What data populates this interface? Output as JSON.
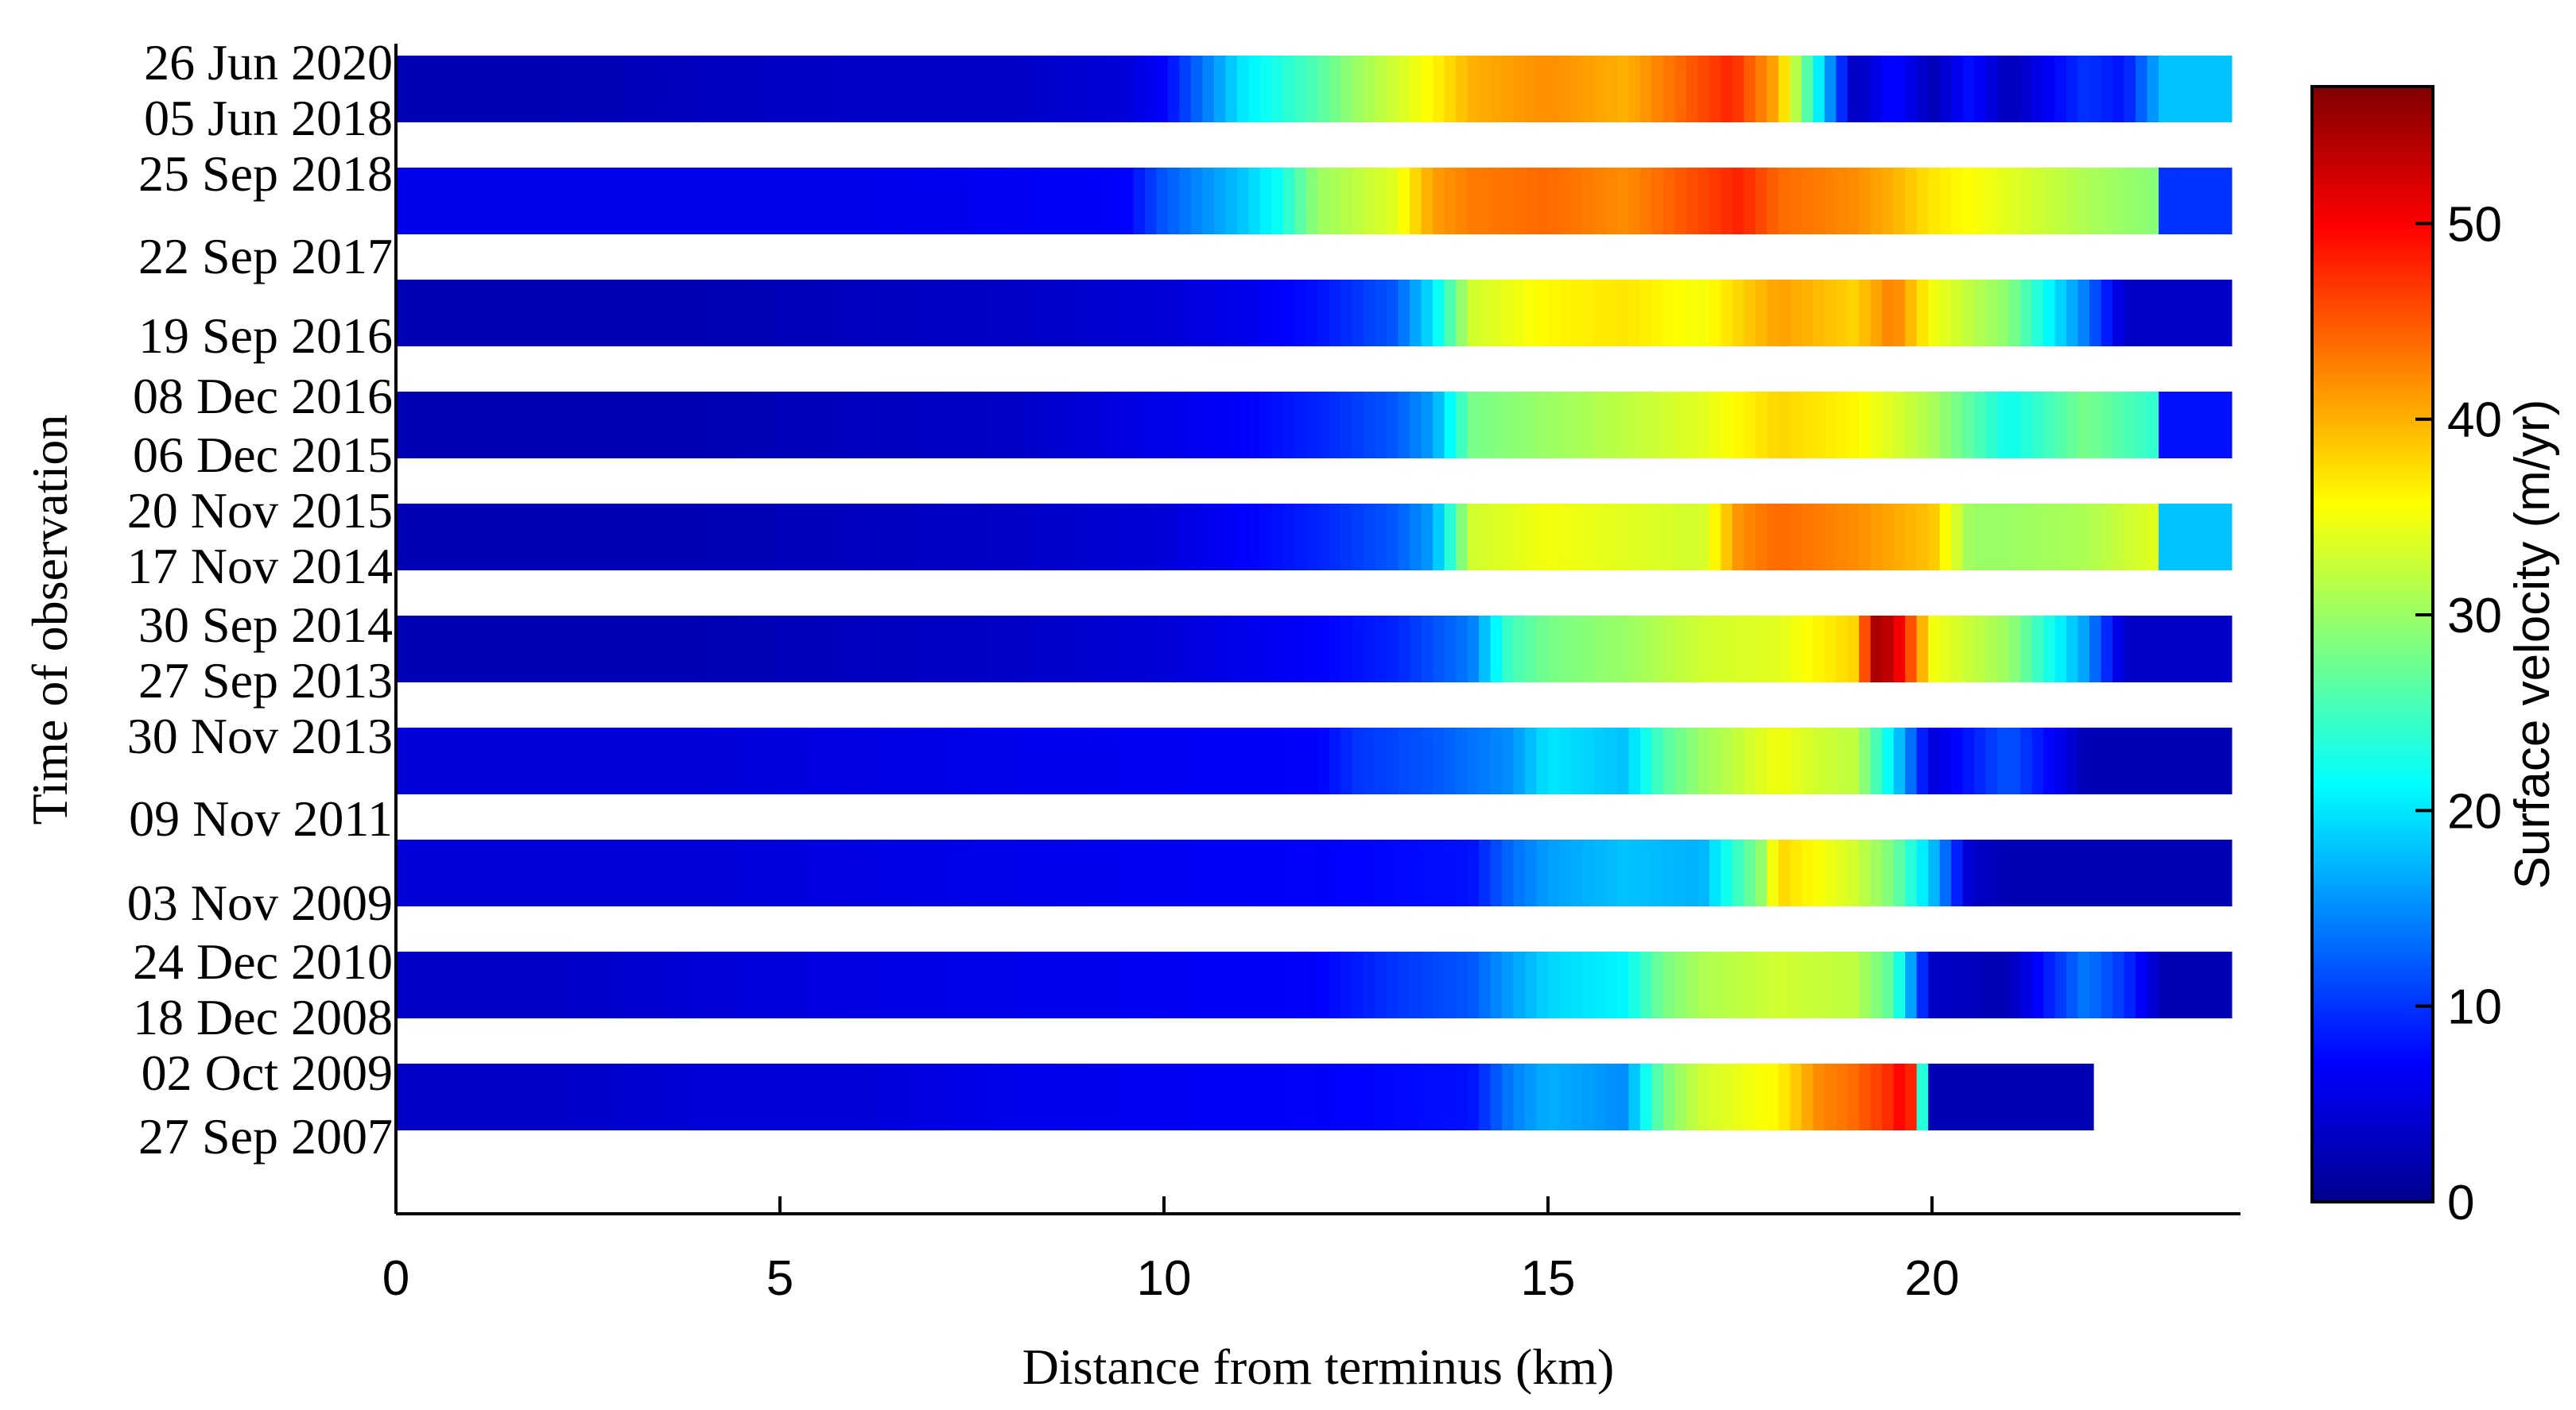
{
  "chart_data": {
    "type": "heatmap",
    "title": "",
    "xlabel": "Distance from terminus (km)",
    "ylabel": "Time of observation",
    "xlim": [
      0,
      24
    ],
    "x_ticks": [
      0,
      5,
      10,
      15,
      20
    ],
    "y_tick_labels": [
      "26 Jun 2020",
      "05 Jun 2018",
      "25 Sep 2018",
      "22 Sep 2017",
      "19 Sep 2016",
      "08 Dec 2016",
      "06 Dec 2015",
      "20 Nov 2015",
      "17 Nov 2014",
      "30 Sep 2014",
      "27 Sep 2013",
      "30 Nov 2013",
      "09 Nov 2011",
      "03 Nov 2009",
      "24 Dec 2010",
      "18 Dec 2008",
      "02 Oct 2009",
      "27 Sep 2007"
    ],
    "colorbar": {
      "label": "Surface velocity (m/yr)",
      "range": [
        0,
        57
      ],
      "ticks": [
        0,
        10,
        20,
        30,
        40,
        50
      ],
      "colormap": "jet"
    },
    "series": [
      {
        "name": "05 Jun 2018 – 26 Jun 2020",
        "x_km": [
          0,
          2,
          4,
          6,
          8,
          9.5,
          10,
          11,
          12,
          12.5,
          13.5,
          14,
          15,
          16,
          17.4,
          17.6,
          18,
          19,
          19.5,
          20,
          20.5,
          21,
          22,
          22.5,
          23,
          23.9
        ],
        "velocity_m_yr": [
          3,
          3,
          3.5,
          4,
          4,
          5,
          7,
          20,
          26,
          30,
          36,
          40,
          42,
          40,
          48,
          45,
          40,
          3,
          8,
          3,
          8,
          3,
          10,
          8,
          18,
          18
        ]
      },
      {
        "name": "22 Sep 2017 – 25 Sep 2018",
        "x_km": [
          0,
          2,
          4,
          6,
          8,
          9.5,
          10,
          11,
          11.5,
          12,
          13,
          13.5,
          14,
          15,
          16,
          17,
          17.5,
          18,
          19,
          19.5,
          20,
          21,
          22,
          22.9,
          23,
          23.9
        ],
        "velocity_m_yr": [
          6,
          6,
          6,
          6,
          6.5,
          7,
          12,
          18,
          22,
          30,
          34,
          41,
          43,
          44,
          42,
          46,
          48,
          44,
          42,
          40,
          37,
          34,
          31,
          29,
          10,
          10
        ]
      },
      {
        "name": "19 Sep 2016",
        "x_km": [
          0,
          2,
          4,
          6,
          8,
          10,
          11,
          12,
          13,
          13.5,
          14,
          15,
          16,
          17,
          18,
          19,
          19.5,
          20,
          21,
          22,
          22.5,
          23.9
        ],
        "velocity_m_yr": [
          3,
          3,
          3,
          3.5,
          4,
          5,
          6,
          8,
          12,
          20,
          33,
          36,
          37,
          35,
          41,
          38,
          43,
          35,
          29,
          14,
          4,
          4
        ]
      },
      {
        "name": "06 Dec 2015 – 08 Dec 2016",
        "x_km": [
          0,
          2,
          4,
          6,
          8,
          10,
          11,
          12,
          13,
          13.5,
          14,
          15,
          16,
          17,
          18,
          19,
          20,
          21,
          22,
          22.9,
          23,
          23.9
        ],
        "velocity_m_yr": [
          3,
          3,
          3,
          3.5,
          4,
          6,
          7,
          9,
          12,
          16,
          28,
          30,
          32,
          34,
          38,
          36,
          31,
          22,
          28,
          24,
          8,
          8
        ]
      },
      {
        "name": "17 Nov 2014 – 20 Nov 2015",
        "x_km": [
          0,
          2,
          4,
          6,
          8,
          10,
          11,
          12,
          13,
          13.5,
          14,
          15,
          16,
          17,
          17.5,
          18,
          19,
          20,
          20.5,
          21,
          22,
          22.9,
          23,
          23.9
        ],
        "velocity_m_yr": [
          3,
          3,
          3,
          3.5,
          4,
          5,
          7,
          9,
          12,
          16,
          33,
          35,
          34,
          33,
          42,
          44,
          42,
          39,
          30,
          30,
          31,
          34,
          18,
          18
        ]
      },
      {
        "name": "27 Sep 2013 – 30 Sep 2014",
        "x_km": [
          0,
          2,
          4,
          6,
          8,
          10,
          11,
          12,
          13,
          14,
          14.5,
          15,
          16,
          17,
          18,
          19,
          19.3,
          19.6,
          20,
          21,
          22,
          22.5,
          23.9
        ],
        "velocity_m_yr": [
          3,
          3,
          3,
          3.5,
          4,
          5,
          6,
          7,
          9,
          14,
          25,
          28,
          30,
          33,
          34,
          38,
          56,
          50,
          35,
          30,
          16,
          4,
          4
        ]
      },
      {
        "name": "30 Nov 2013",
        "x_km": [
          0,
          2,
          4,
          6,
          8,
          10,
          12,
          12.5,
          13.5,
          14.5,
          15,
          16,
          16.5,
          17,
          18,
          18.5,
          19,
          19.5,
          20,
          21,
          22,
          23.9
        ],
        "velocity_m_yr": [
          5,
          5,
          5,
          5.5,
          6,
          6.5,
          7,
          10,
          12,
          15,
          20,
          18,
          26,
          30,
          35,
          33,
          32,
          20,
          5,
          12,
          3,
          3
        ]
      },
      {
        "name": "03 Nov 2009 – 09 Nov 2011",
        "x_km": [
          0,
          2,
          4,
          6,
          8,
          10,
          12,
          14,
          14.5,
          15,
          16,
          17,
          17.8,
          18,
          19,
          19.5,
          20,
          20.5,
          21,
          23.9
        ],
        "velocity_m_yr": [
          5,
          5,
          5,
          5.5,
          6,
          6.5,
          7,
          8,
          13,
          16,
          18,
          17,
          30,
          38,
          33,
          28,
          18,
          4,
          3,
          3
        ]
      },
      {
        "name": "18 Dec 2008 – 24 Dec 2010",
        "x_km": [
          0,
          2,
          4,
          6,
          8,
          10,
          12,
          13,
          14,
          14.5,
          15,
          16,
          16.5,
          17,
          18,
          19,
          19.5,
          20,
          21,
          22,
          22.5,
          23,
          23.9
        ],
        "velocity_m_yr": [
          4,
          4,
          5,
          5.5,
          6,
          6.5,
          7,
          10,
          12,
          16,
          19,
          21,
          28,
          31,
          33,
          32,
          26,
          4,
          3,
          14,
          10,
          3,
          3
        ]
      },
      {
        "name": "27 Sep 2007 – 02 Oct 2009",
        "x_km": [
          0,
          2,
          4,
          6,
          8,
          10,
          12,
          14,
          14.5,
          15,
          16,
          16.5,
          17,
          18,
          18.5,
          19,
          19.5,
          19.7,
          20,
          21,
          22.1
        ],
        "velocity_m_yr": [
          4,
          4,
          5,
          5,
          6,
          6.5,
          7,
          8,
          14,
          17,
          15,
          28,
          33,
          36,
          42,
          44,
          48,
          52,
          3,
          3,
          3
        ]
      }
    ]
  }
}
